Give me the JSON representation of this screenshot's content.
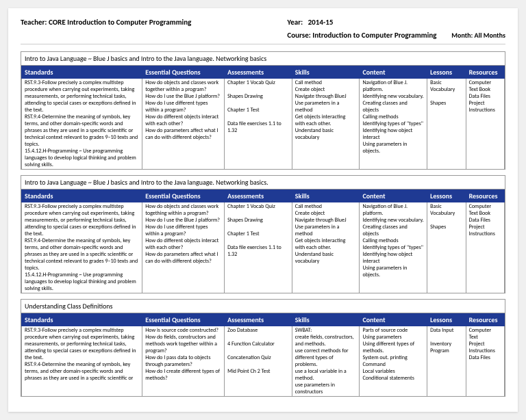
{
  "header": {
    "teacher_label": "Teacher:",
    "teacher": "CORE Introduction to Computer Programming",
    "year_label": "Year:",
    "year": "2014-15",
    "course_label": "Course:",
    "course": "Introduction to Computer Programming",
    "month_label": "Month:",
    "month": "All Months"
  },
  "colors": {
    "header_bg": "#1f3a93",
    "header_text": "#ffffff",
    "border": "#999999"
  },
  "columns": [
    "Standards",
    "Essential Questions",
    "Assessments",
    "Skills",
    "Content",
    "Lessons",
    "Resources"
  ],
  "sections": [
    {
      "title": "Intro to Java Language ~ Blue J basics and Intro to the Java language. Networking basics",
      "row": {
        "standards": "RST.9.3-Follow precisely a complex multistep procedure when carrying out experiments, taking measurements, or performing technical tasks, attending to special cases or exceptions defined in the text.\nRST.9.4-Determine the meaning of symbols, key terms, and other domain-specific words and phrases as they are used in a specific scientific or technical context relevant to grades 9–10 texts and topics.\n15.4.12.H-Programming ~ Use programming languages to develop logical thinking and problem solving skills.",
        "questions": "How do objects and classes work together within a program?\nHow do I use the Blue J platform?\nHow do I use different types within a program?\nHow do different objects interact with each other?\nHow do parameters affect what I can do with different objects?",
        "assessments": "Chapter 1 Vocab Quiz\n\nShapes Drawing\n\nChapter 1 Test\n\nData file exercises 1.1 to 1.32",
        "skills": "Call method\nCreate object\nNavigate through BlueJ\nUse parameters in a method\nGet objects interacting with each other.\nUnderstand basic vocabulary",
        "content": "Navigation of Blue J. platform.\nIdentifying new vocabulary.\nCreating classes and objects\nCalling methods\nIdentifying types of \"types\"\nIdentifying how object interact\nUsing parameters in objects.",
        "lessons": "Basic Vocabulary\n\nShapes",
        "resources": "Computer\nText Book\nData Files\nProject Instructions"
      }
    },
    {
      "title": "Intro to Java Language ~  Blue J basics and Intro to the Java language. Networking basics.",
      "row": {
        "standards": "RST.9.3-Follow precisely a complex multistep procedure when carrying out experiments, taking measurements, or performing technical tasks, attending to special cases or exceptions defined in the text.\nRST.9.4-Determine the meaning of symbols, key terms, and other domain-specific words and phrases as they are used in a specific scientific or technical context relevant to grades 9–10 texts and topics.\n15.4.12.H-Programming ~ Use programming languages to develop logical thinking and problem solving skills.",
        "questions": "How do objects and classes work togething within a program?\nHow do I use the Blue J platform?\nHow do I use different types within a program?\nHow do different objects interact with each other?\nHow do parameters affect what I can do with different objects?",
        "assessments": "Chapter 1 Vocab Quiz\n\nShapes Drawing\n\nChapter 1 Test\n\nData file exercises 1.1 to 1.32",
        "skills": "Call method\nCreate object\nNavigate through BlueJ\nUse parameters in a method\nGet objects interacting with each other.\nUnderstand basic vocabulary",
        "content": "Navigation of Blue J. platform.\nIdentifying new vocabulary.\nCreating classes and objects\nCalling methods\nIdentifying types of \"types\"\nIdentifying how object interact\nUsing parameters in objects.",
        "lessons": "Basic Vocabulary\n\nShapes",
        "resources": "Computer\nText Book\nData Files\nProject Instructions"
      }
    },
    {
      "title": "Understanding Class Definitions",
      "row": {
        "standards": "RST.9.3-Follow precisely a complex multistep procedure when carrying out experiments, taking measurements, or performing technical tasks, attending to special cases or exceptions defined in the text.\nRST.9.4-Determine the meaning of symbols, key terms, and other domain-specific words and phrases as they are used in a specific scientific or",
        "questions": "How is source code constructed?\nHow do fields, constructors and methods work together within a program?\nHow do I pass data to objects through parameters?\nHow do I create different types of methods?",
        "assessments": "Zoo Database\n\n4 Function Calculator\n\nConcatenation Quiz\n\nMid Point Ch 2 Test",
        "skills": "SWBAT:\ncreate fields, constructors, and methods.\nuse correct methods for different types of problems.\nuse a local variable in a method.\nuse parameters in constructors",
        "content": "Parts of source code\nUsing parameters\nUsing different types of methods.\nSystem out. printing Command\nLocal variables\nConditional statements",
        "lessons": "Data Input\n\nInventory Program",
        "resources": "Computer\nText\nProject Instructions\nData Files"
      }
    }
  ]
}
